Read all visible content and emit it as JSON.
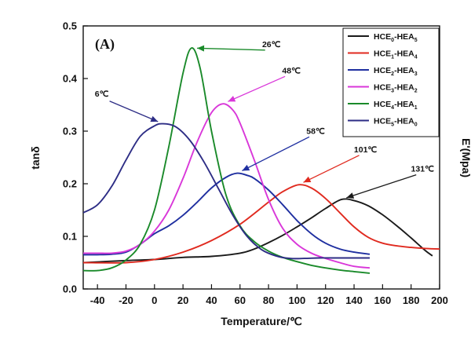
{
  "chart_data": {
    "type": "line",
    "panel_label": "(A)",
    "xlabel": "Temperature/℃",
    "ylabel": "tanδ",
    "y2label": "E'(Mpa)",
    "xlim": [
      -50,
      200
    ],
    "ylim": [
      0.0,
      0.5
    ],
    "x_ticks": [
      -40,
      -20,
      0,
      20,
      40,
      60,
      80,
      100,
      120,
      140,
      160,
      180,
      200
    ],
    "y_ticks": [
      0.0,
      0.1,
      0.2,
      0.3,
      0.4,
      0.5
    ],
    "y_tick_labels": [
      "0.0",
      "0.1",
      "0.2",
      "0.3",
      "0.4",
      "0.5"
    ],
    "grid": false,
    "legend_position": "top-right",
    "series": [
      {
        "name": "HCE0-HEA5",
        "base": "HCE",
        "sub1": "0",
        "mid": "-HEA",
        "sub2": "5",
        "color": "#1a1a1a",
        "x": [
          -50,
          -20,
          0,
          20,
          40,
          60,
          70,
          80,
          90,
          100,
          110,
          120,
          131,
          140,
          150,
          160,
          170,
          180,
          190,
          195
        ],
        "y": [
          0.05,
          0.054,
          0.056,
          0.06,
          0.062,
          0.068,
          0.076,
          0.088,
          0.102,
          0.118,
          0.135,
          0.153,
          0.17,
          0.168,
          0.158,
          0.141,
          0.12,
          0.097,
          0.073,
          0.063
        ]
      },
      {
        "name": "HCE1-HEA4",
        "base": "HCE",
        "sub1": "1",
        "mid": "-HEA",
        "sub2": "4",
        "color": "#e02a1f",
        "x": [
          -50,
          -20,
          0,
          20,
          40,
          60,
          80,
          90,
          101,
          110,
          120,
          130,
          140,
          150,
          160,
          170,
          180,
          190,
          200
        ],
        "y": [
          0.05,
          0.05,
          0.056,
          0.07,
          0.092,
          0.123,
          0.165,
          0.185,
          0.198,
          0.192,
          0.172,
          0.145,
          0.118,
          0.098,
          0.087,
          0.082,
          0.079,
          0.077,
          0.076
        ]
      },
      {
        "name": "HCE2-HEA3",
        "base": "HCE",
        "sub1": "2",
        "mid": "-HEA",
        "sub2": "3",
        "color": "#1f2fa0",
        "x": [
          -50,
          -40,
          -30,
          -20,
          -10,
          0,
          10,
          20,
          30,
          40,
          50,
          58,
          65,
          70,
          80,
          90,
          100,
          110,
          120,
          130,
          140,
          151
        ],
        "y": [
          0.065,
          0.065,
          0.066,
          0.07,
          0.085,
          0.105,
          0.12,
          0.14,
          0.165,
          0.192,
          0.212,
          0.22,
          0.216,
          0.21,
          0.188,
          0.16,
          0.13,
          0.105,
          0.087,
          0.076,
          0.07,
          0.066
        ]
      },
      {
        "name": "HCE3-HEA2",
        "base": "HCE",
        "sub1": "3",
        "mid": "-HEA",
        "sub2": "2",
        "color": "#d937d9",
        "x": [
          -50,
          -40,
          -30,
          -20,
          -10,
          0,
          10,
          20,
          30,
          40,
          48,
          55,
          60,
          70,
          80,
          90,
          100,
          110,
          120,
          130,
          140,
          151
        ],
        "y": [
          0.068,
          0.068,
          0.068,
          0.072,
          0.085,
          0.11,
          0.15,
          0.21,
          0.28,
          0.335,
          0.352,
          0.34,
          0.315,
          0.245,
          0.17,
          0.115,
          0.085,
          0.068,
          0.058,
          0.05,
          0.043,
          0.04
        ]
      },
      {
        "name": "HCE4-HEA1",
        "base": "HCE",
        "sub1": "4",
        "mid": "-HEA",
        "sub2": "1",
        "color": "#1a8a2a",
        "x": [
          -50,
          -40,
          -30,
          -20,
          -10,
          0,
          10,
          20,
          26,
          32,
          40,
          50,
          60,
          70,
          80,
          90,
          100,
          110,
          120,
          130,
          140,
          151
        ],
        "y": [
          0.035,
          0.035,
          0.04,
          0.055,
          0.085,
          0.15,
          0.27,
          0.41,
          0.458,
          0.42,
          0.3,
          0.18,
          0.12,
          0.09,
          0.072,
          0.06,
          0.052,
          0.045,
          0.04,
          0.036,
          0.033,
          0.03
        ]
      },
      {
        "name": "HCE5-HEA0",
        "base": "HCE",
        "sub1": "5",
        "mid": "-HEA",
        "sub2": "0",
        "color": "#2d2d85",
        "x": [
          -50,
          -40,
          -30,
          -20,
          -10,
          0,
          6,
          15,
          25,
          35,
          45,
          55,
          65,
          75,
          85,
          95,
          105,
          115,
          125,
          135,
          145,
          151
        ],
        "y": [
          0.145,
          0.16,
          0.195,
          0.245,
          0.29,
          0.31,
          0.314,
          0.308,
          0.282,
          0.24,
          0.19,
          0.14,
          0.1,
          0.075,
          0.063,
          0.058,
          0.058,
          0.059,
          0.059,
          0.059,
          0.059,
          0.059
        ]
      }
    ],
    "annotations": [
      {
        "label": "26℃",
        "peak_x": 26,
        "peak_y": 0.458,
        "text_x": 82,
        "text_y": 0.46
      },
      {
        "label": "48℃",
        "peak_x": 48,
        "peak_y": 0.352,
        "text_x": 96,
        "text_y": 0.41
      },
      {
        "label": "6℃",
        "peak_x": 6,
        "peak_y": 0.314,
        "text_x": -37,
        "text_y": 0.366
      },
      {
        "label": "58℃",
        "peak_x": 58,
        "peak_y": 0.22,
        "text_x": 113,
        "text_y": 0.295
      },
      {
        "label": "101℃",
        "peak_x": 101,
        "peak_y": 0.198,
        "text_x": 148,
        "text_y": 0.26
      },
      {
        "label": "131℃",
        "peak_x": 131,
        "peak_y": 0.17,
        "text_x": 188,
        "text_y": 0.223
      }
    ]
  }
}
